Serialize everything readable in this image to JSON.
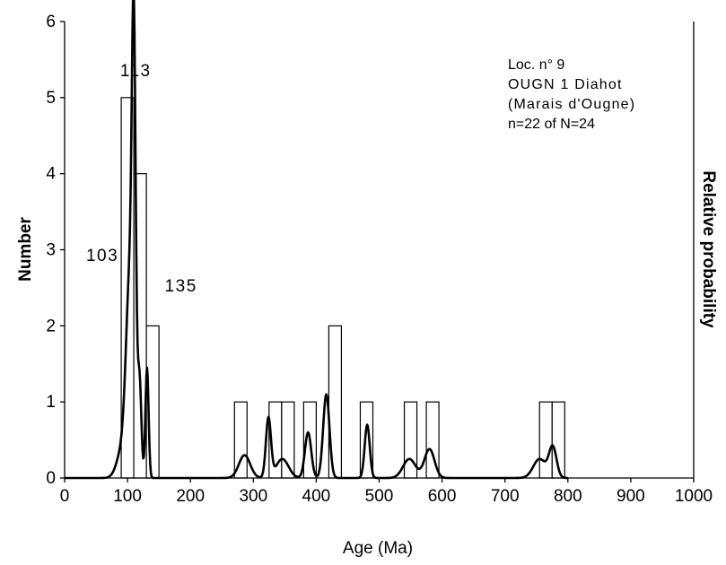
{
  "chart_data": {
    "type": "bar",
    "xlabel": "Age (Ma)",
    "ylabel": "Number",
    "y2label": "Relative probability",
    "xlim": [
      0,
      1000
    ],
    "ylim": [
      0,
      6
    ],
    "xticks": [
      "0",
      "100",
      "200",
      "300",
      "400",
      "500",
      "600",
      "700",
      "800",
      "900",
      "1000"
    ],
    "yticks": [
      "0",
      "1",
      "2",
      "3",
      "4",
      "5",
      "6"
    ],
    "bin_width": 20,
    "histogram": [
      {
        "x0": 90,
        "x1": 110,
        "count": 5
      },
      {
        "x0": 110,
        "x1": 130,
        "count": 4
      },
      {
        "x0": 130,
        "x1": 150,
        "count": 2
      },
      {
        "x0": 270,
        "x1": 290,
        "count": 1
      },
      {
        "x0": 325,
        "x1": 345,
        "count": 1
      },
      {
        "x0": 345,
        "x1": 365,
        "count": 1
      },
      {
        "x0": 380,
        "x1": 400,
        "count": 1
      },
      {
        "x0": 420,
        "x1": 440,
        "count": 2
      },
      {
        "x0": 470,
        "x1": 490,
        "count": 1
      },
      {
        "x0": 540,
        "x1": 560,
        "count": 1
      },
      {
        "x0": 575,
        "x1": 595,
        "count": 1
      },
      {
        "x0": 755,
        "x1": 775,
        "count": 1
      },
      {
        "x0": 775,
        "x1": 795,
        "count": 1
      }
    ],
    "probability_curve": {
      "scale_note": "plotted in left-axis units",
      "peaks": [
        {
          "center": 104,
          "height": 2.5,
          "sigma": 6
        },
        {
          "center": 110,
          "height": 4.8,
          "sigma": 3
        },
        {
          "center": 119,
          "height": 1.25,
          "sigma": 3
        },
        {
          "center": 131,
          "height": 1.45,
          "sigma": 2.5
        },
        {
          "center": 93,
          "height": 0.4,
          "sigma": 9
        },
        {
          "center": 286,
          "height": 0.3,
          "sigma": 9
        },
        {
          "center": 324,
          "height": 0.78,
          "sigma": 4
        },
        {
          "center": 346,
          "height": 0.25,
          "sigma": 10
        },
        {
          "center": 387,
          "height": 0.6,
          "sigma": 5
        },
        {
          "center": 416,
          "height": 1.1,
          "sigma": 5
        },
        {
          "center": 481,
          "height": 0.7,
          "sigma": 4
        },
        {
          "center": 548,
          "height": 0.25,
          "sigma": 10
        },
        {
          "center": 580,
          "height": 0.38,
          "sigma": 8
        },
        {
          "center": 755,
          "height": 0.25,
          "sigma": 10
        },
        {
          "center": 776,
          "height": 0.4,
          "sigma": 6
        }
      ]
    },
    "annotations": [
      {
        "text": "113",
        "x": 113,
        "y": 5.28
      },
      {
        "text": "103",
        "x": 60,
        "y": 2.85
      },
      {
        "text": "135",
        "x": 185,
        "y": 2.45
      }
    ],
    "legend_text": [
      "Loc. n° 9",
      "OUGN 1 Diahot",
      "(Marais d'Ougne)",
      "n=22 of N=24"
    ],
    "grid": false
  }
}
